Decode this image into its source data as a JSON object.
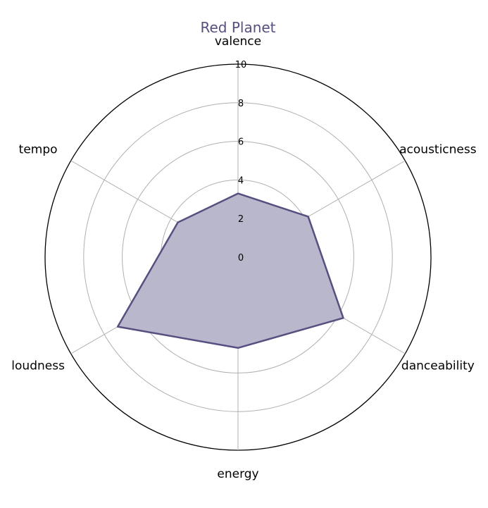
{
  "chart_data": {
    "type": "radar",
    "title": "Red Planet",
    "categories": [
      "valence",
      "acousticness",
      "danceability",
      "energy",
      "loudness",
      "tempo"
    ],
    "series": [
      {
        "values": [
          3.3,
          4.2,
          6.3,
          4.7,
          7.2,
          3.6
        ]
      }
    ],
    "rlim": [
      0,
      10
    ],
    "r_ticks": [
      "0",
      "2",
      "4",
      "6",
      "8",
      "10"
    ],
    "grid": true,
    "colors": {
      "series": "#574f80",
      "fill": "#b9b7cc",
      "grid": "#b0b0b0",
      "frame": "#000000"
    }
  }
}
